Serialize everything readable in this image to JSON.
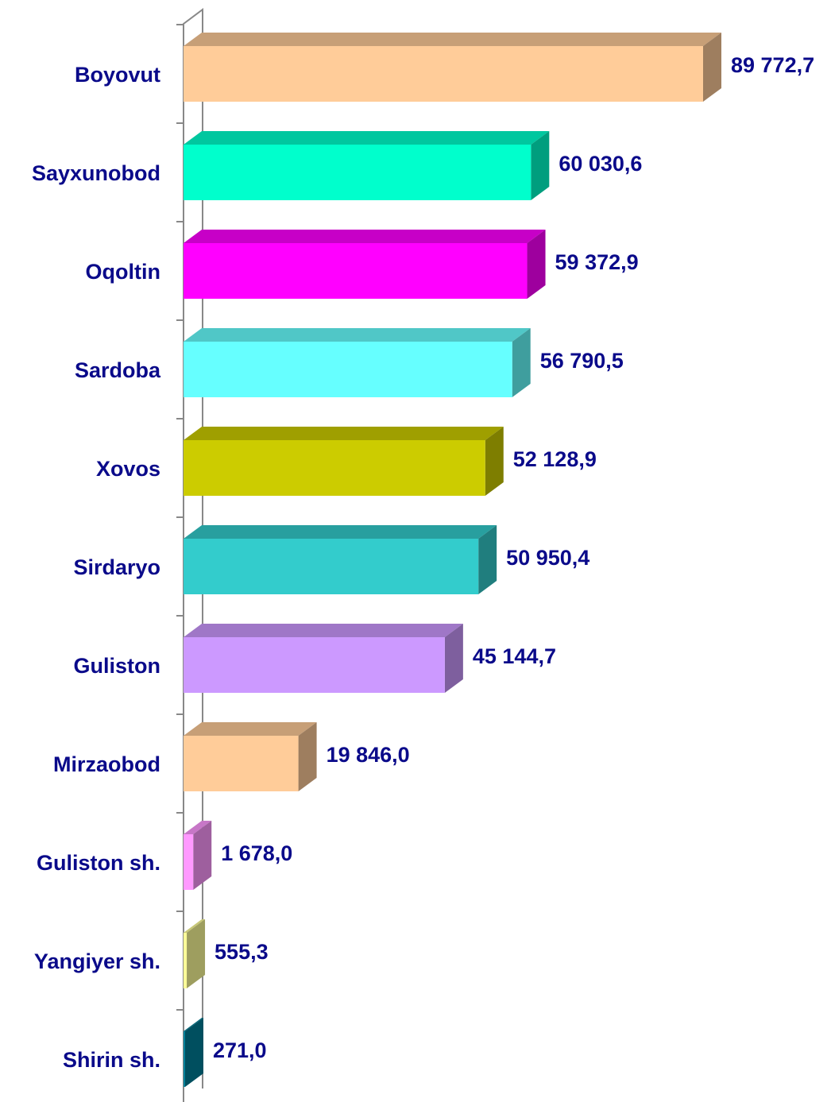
{
  "chart_data": {
    "type": "bar",
    "orientation": "horizontal",
    "categories": [
      "Boyovut",
      "Sayxunobod",
      "Oqoltin",
      "Sardoba",
      "Xovos",
      "Sirdaryo",
      "Guliston",
      "Mirzaobod",
      "Guliston sh.",
      "Yangiyer sh.",
      "Shirin sh."
    ],
    "values": [
      89772.7,
      60030.6,
      59372.9,
      56790.5,
      52128.9,
      50950.4,
      45144.7,
      19846.0,
      1678.0,
      555.3,
      271.0
    ],
    "value_labels": [
      "89 772,7",
      "60 030,6",
      "59 372,9",
      "56 790,5",
      "52 128,9",
      "50 950,4",
      "45 144,7",
      "19 846,0",
      "1 678,0",
      "555,3",
      "271,0"
    ],
    "colors": [
      "#ffcc99",
      "#00ffcc",
      "#ff00ff",
      "#66ffff",
      "#cccc00",
      "#33cccc",
      "#cc99ff",
      "#ffcc99",
      "#ff99ff",
      "#ffff99",
      "#008099"
    ]
  }
}
